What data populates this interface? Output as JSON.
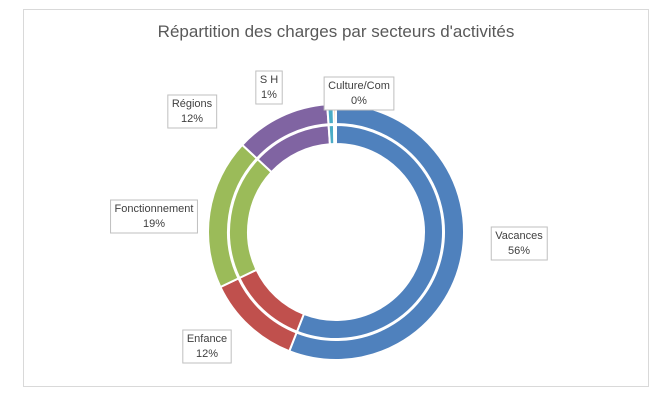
{
  "chart_data": {
    "type": "doughnut",
    "title": "Répartition des charges par secteurs d'activités",
    "rings": 2,
    "start_angle_deg": 0,
    "direction": "clockwise",
    "slices": [
      {
        "label": "Vacances",
        "pct_label": "56%",
        "value": 56,
        "color": "#4f81bd"
      },
      {
        "label": "Enfance",
        "pct_label": "12%",
        "value": 12,
        "color": "#c0504d"
      },
      {
        "label": "Fonctionnement",
        "pct_label": "19%",
        "value": 19,
        "color": "#9bbb59"
      },
      {
        "label": "Régions",
        "pct_label": "12%",
        "value": 12,
        "color": "#8064a2"
      },
      {
        "label": "S H",
        "pct_label": "1%",
        "value": 0.8,
        "color": "#4bacc6"
      },
      {
        "label": "Culture/Com",
        "pct_label": "0%",
        "value": 0.3,
        "color": "#f79646"
      }
    ],
    "legend": "none"
  }
}
